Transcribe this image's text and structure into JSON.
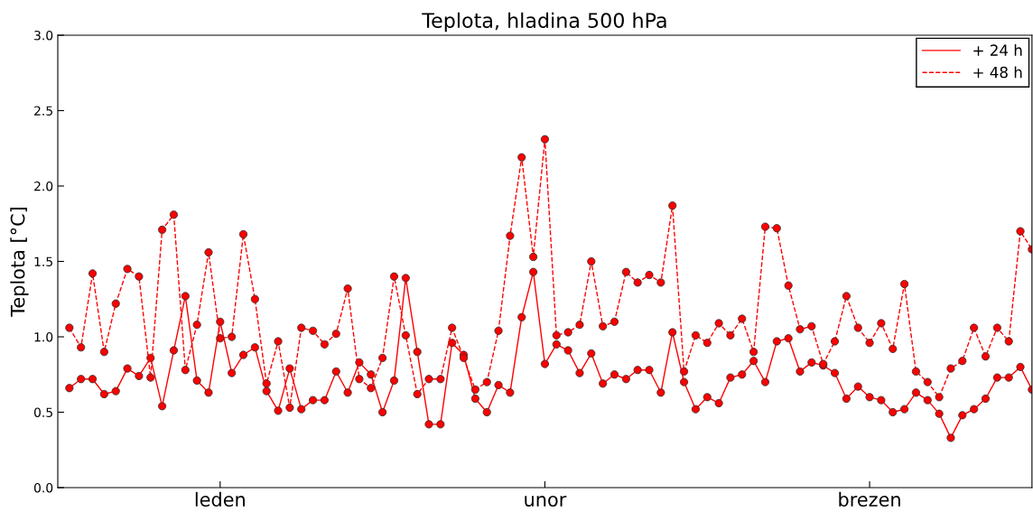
{
  "chart_data": {
    "type": "line",
    "title": "Teplota, hladina 500 hPa",
    "ylabel": "Teplota [°C]",
    "categories": [
      null,
      null,
      null,
      null,
      null,
      null,
      null,
      null,
      null,
      null,
      null,
      null,
      null,
      "leden",
      null,
      null,
      null,
      null,
      null,
      null,
      null,
      null,
      null,
      null,
      null,
      null,
      null,
      null,
      null,
      null,
      null,
      null,
      null,
      null,
      null,
      null,
      null,
      null,
      null,
      null,
      null,
      "unor",
      null,
      null,
      null,
      null,
      null,
      null,
      null,
      null,
      null,
      null,
      null,
      null,
      null,
      null,
      null,
      null,
      null,
      null,
      null,
      null,
      null,
      null,
      null,
      null,
      null,
      null,
      null,
      "brezen",
      null,
      null,
      null,
      null,
      null,
      null,
      null,
      null,
      null,
      null,
      null,
      null,
      null,
      null
    ],
    "ylim": [
      0,
      3
    ],
    "yticks": [
      {
        "value": 0,
        "label": "0.0"
      },
      {
        "value": 0.5,
        "label": "0.5"
      },
      {
        "value": 1,
        "label": "1.0"
      },
      {
        "value": 1.5,
        "label": "1.5"
      },
      {
        "value": 2,
        "label": "2.0"
      },
      {
        "value": 2.5,
        "label": "2.5"
      },
      {
        "value": 3,
        "label": "3.0"
      }
    ],
    "legend": "top right",
    "marker": "circle",
    "series": [
      {
        "name": "+ 24 h",
        "color": "#ff0000",
        "line_style": "solid",
        "values": [
          0.66,
          0.72,
          0.72,
          0.62,
          0.64,
          0.79,
          0.74,
          0.86,
          0.54,
          0.91,
          1.27,
          0.71,
          0.63,
          1.1,
          0.76,
          0.88,
          0.93,
          0.64,
          0.51,
          0.79,
          0.52,
          0.58,
          0.58,
          0.77,
          0.63,
          0.83,
          0.75,
          0.5,
          0.71,
          1.39,
          0.9,
          0.42,
          0.42,
          0.96,
          0.88,
          0.59,
          0.5,
          0.68,
          0.63,
          1.13,
          1.43,
          0.82,
          0.95,
          0.91,
          0.76,
          0.89,
          0.69,
          0.75,
          0.72,
          0.78,
          0.78,
          0.63,
          1.03,
          0.7,
          0.52,
          0.6,
          0.56,
          0.73,
          0.75,
          0.84,
          0.7,
          0.97,
          0.99,
          0.77,
          0.83,
          0.81,
          0.76,
          0.59,
          0.67,
          0.6,
          0.58,
          0.5,
          0.52,
          0.63,
          0.58,
          0.49,
          0.33,
          0.48,
          0.52,
          0.59,
          0.73,
          0.73,
          0.8,
          0.65
        ]
      },
      {
        "name": "+ 48 h",
        "color": "#ff0000",
        "line_style": "dashed",
        "values": [
          1.06,
          0.93,
          1.42,
          0.9,
          1.22,
          1.45,
          1.4,
          0.73,
          1.71,
          1.81,
          0.78,
          1.08,
          1.56,
          0.99,
          1.0,
          1.68,
          1.25,
          0.69,
          0.97,
          0.53,
          1.06,
          1.04,
          0.95,
          1.02,
          1.32,
          0.72,
          0.66,
          0.86,
          1.4,
          1.01,
          0.62,
          0.72,
          0.72,
          1.06,
          0.86,
          0.65,
          0.7,
          1.04,
          1.67,
          2.19,
          1.53,
          2.31,
          1.01,
          1.03,
          1.08,
          1.5,
          1.07,
          1.1,
          1.43,
          1.36,
          1.41,
          1.36,
          1.87,
          0.77,
          1.01,
          0.96,
          1.09,
          1.01,
          1.12,
          0.9,
          1.73,
          1.72,
          1.34,
          1.05,
          1.07,
          0.82,
          0.97,
          1.27,
          1.06,
          0.96,
          1.09,
          0.92,
          1.35,
          0.77,
          0.7,
          0.6,
          0.79,
          0.84,
          1.06,
          0.87,
          1.06,
          0.97,
          1.7,
          1.58
        ]
      }
    ]
  }
}
